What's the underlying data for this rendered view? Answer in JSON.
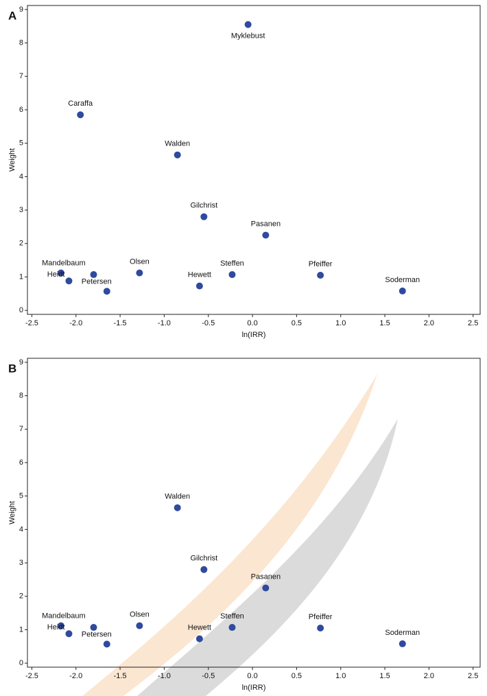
{
  "chart_data": [
    {
      "type": "scatter",
      "panel": "A",
      "x_label": "ln(IRR)",
      "y_label": "Weight",
      "color": "#2f4a9e",
      "x": [
        -0.05,
        -1.95,
        -0.85,
        -0.55,
        0.15,
        -2.17,
        -2.08,
        -1.8,
        -1.65,
        -1.28,
        -0.6,
        -0.23,
        0.77,
        1.7
      ],
      "values": [
        8.55,
        5.85,
        4.65,
        2.8,
        2.25,
        1.12,
        0.88,
        1.07,
        0.57,
        1.12,
        0.73,
        1.07,
        1.05,
        0.58
      ],
      "labels": [
        "Myklebust",
        "Caraffa",
        "Walden",
        "Gilchrist",
        "Pasanen",
        "Mandelbaum",
        "Heidt",
        null,
        "Petersen",
        "Olsen",
        "Hewett",
        "Steffen",
        "Pfeiffer",
        "Soderman"
      ],
      "xlim": [
        -2.55,
        2.58
      ],
      "ylim": [
        -0.12,
        9.12
      ],
      "xticks": [
        -2.5,
        {
          "value": -2,
          "label": "-2.0"
        },
        -1.5,
        {
          "value": -1,
          "label": "-1.0"
        },
        -0.5,
        {
          "value": 0,
          "label": "0.0"
        },
        0.5,
        {
          "value": 1,
          "label": "1.0"
        },
        1.5,
        {
          "value": 2,
          "label": "2.0"
        },
        2.5
      ],
      "yticks": [
        0,
        1,
        2,
        3,
        4,
        5,
        6,
        7,
        8,
        9
      ]
    },
    {
      "type": "scatter",
      "panel": "B",
      "x_label": "ln(IRR)",
      "y_label": "Weight",
      "color": "#2f4a9e",
      "x": [
        -0.85,
        -0.55,
        0.15,
        -2.17,
        -2.08,
        -1.8,
        -1.65,
        -1.28,
        -0.6,
        -0.23,
        0.77,
        1.7
      ],
      "values": [
        4.65,
        2.8,
        2.25,
        1.12,
        0.88,
        1.07,
        0.57,
        1.12,
        0.73,
        1.07,
        1.05,
        0.58
      ],
      "labels": [
        "Walden",
        "Gilchrist",
        "Pasanen",
        "Mandelbaum",
        "Heidt",
        null,
        "Petersen",
        "Olsen",
        "Hewett",
        "Steffen",
        "Pfeiffer",
        "Soderman"
      ],
      "xlim": [
        -2.55,
        2.58
      ],
      "ylim": [
        -0.12,
        9.12
      ],
      "xticks": [
        -2.5,
        {
          "value": -2,
          "label": "-2.0"
        },
        -1.5,
        {
          "value": -1,
          "label": "-1.0"
        },
        -0.5,
        {
          "value": 0,
          "label": "0.0"
        },
        0.5,
        {
          "value": 1,
          "label": "1.0"
        },
        1.5,
        {
          "value": 2,
          "label": "2.0"
        },
        2.5
      ],
      "yticks": [
        0,
        1,
        2,
        3,
        4,
        5,
        6,
        7,
        8,
        9
      ]
    }
  ]
}
